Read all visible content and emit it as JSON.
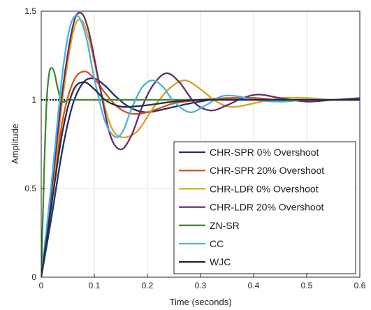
{
  "chart_data": {
    "type": "line",
    "title": "",
    "xlabel": "Time (seconds)",
    "ylabel": "Amplitude",
    "xlim": [
      0,
      0.6
    ],
    "ylim": [
      0,
      1.5
    ],
    "xticks": [
      0,
      0.1,
      0.2,
      0.3,
      0.4,
      0.5,
      0.6
    ],
    "xtick_labels": [
      "0",
      "0.1",
      "0.2",
      "0.3",
      "0.4",
      "0.5",
      "0.6"
    ],
    "yticks": [
      0,
      0.5,
      1,
      1.5
    ],
    "ytick_labels": [
      "0",
      "0.5",
      "1",
      "1.5"
    ],
    "grid": true,
    "legend_position": "bottom-right",
    "reference_line": {
      "y": 1,
      "style": "dotted",
      "x_range": [
        0,
        0.6
      ],
      "color": "#000000"
    },
    "series": [
      {
        "name": "CHR-SPR 0% Overshoot",
        "color": "#1f2f6b",
        "x": [
          0,
          0.02,
          0.04,
          0.06,
          0.08,
          0.1,
          0.12,
          0.14,
          0.16,
          0.18,
          0.2,
          0.22,
          0.25,
          0.28,
          0.32,
          0.36,
          0.4,
          0.45,
          0.5,
          0.55,
          0.6
        ],
        "y": [
          0,
          0.35,
          0.72,
          0.98,
          1.1,
          1.12,
          1.08,
          1.02,
          0.97,
          0.94,
          0.93,
          0.94,
          0.96,
          0.98,
          1.0,
          1.01,
          1.01,
          1.0,
          1.0,
          1.0,
          1.0
        ]
      },
      {
        "name": "CHR-SPR 20% Overshoot",
        "color": "#d9531e",
        "x": [
          0,
          0.02,
          0.04,
          0.06,
          0.08,
          0.1,
          0.12,
          0.14,
          0.16,
          0.18,
          0.2,
          0.22,
          0.25,
          0.3,
          0.35,
          0.4,
          0.45,
          0.5,
          0.55,
          0.6
        ],
        "y": [
          0,
          0.45,
          0.88,
          1.1,
          1.16,
          1.12,
          1.04,
          0.97,
          0.93,
          0.92,
          0.93,
          0.95,
          0.98,
          1.0,
          1.01,
          1.01,
          1.0,
          1.0,
          1.0,
          1.0
        ]
      },
      {
        "name": "CHR-LDR 0% Overshoot",
        "color": "#d9a31e",
        "x": [
          0,
          0.02,
          0.04,
          0.06,
          0.075,
          0.09,
          0.11,
          0.13,
          0.15,
          0.18,
          0.21,
          0.24,
          0.27,
          0.3,
          0.33,
          0.36,
          0.4,
          0.45,
          0.5,
          0.55,
          0.6
        ],
        "y": [
          0,
          0.45,
          1.0,
          1.38,
          1.45,
          1.34,
          1.08,
          0.86,
          0.79,
          0.82,
          0.95,
          1.06,
          1.11,
          1.06,
          0.99,
          0.96,
          0.98,
          1.01,
          1.01,
          1.0,
          1.0
        ]
      },
      {
        "name": "CHR-LDR 20% Overshoot",
        "color": "#6a2a6b",
        "x": [
          0,
          0.02,
          0.04,
          0.06,
          0.075,
          0.09,
          0.11,
          0.13,
          0.15,
          0.17,
          0.19,
          0.21,
          0.235,
          0.26,
          0.29,
          0.32,
          0.35,
          0.38,
          0.41,
          0.45,
          0.5,
          0.55,
          0.6
        ],
        "y": [
          0,
          0.5,
          1.05,
          1.42,
          1.49,
          1.38,
          1.08,
          0.8,
          0.72,
          0.8,
          0.96,
          1.08,
          1.15,
          1.1,
          0.98,
          0.94,
          0.97,
          1.01,
          1.03,
          1.01,
          0.99,
          1.0,
          1.01
        ]
      },
      {
        "name": "ZN-SR",
        "color": "#3d8b2f",
        "x": [
          0,
          0.005,
          0.01,
          0.015,
          0.02,
          0.025,
          0.03,
          0.035,
          0.04,
          0.045,
          0.05,
          0.06,
          0.08,
          0.1,
          0.15,
          0.2,
          0.3,
          0.4,
          0.5,
          0.6
        ],
        "y": [
          0,
          0.55,
          0.98,
          1.15,
          1.18,
          1.15,
          1.08,
          1.02,
          0.99,
          0.99,
          1.0,
          1.0,
          1.0,
          1.0,
          1.0,
          1.0,
          1.0,
          1.0,
          1.0,
          1.0
        ]
      },
      {
        "name": "CC",
        "color": "#4ab1de",
        "x": [
          0,
          0.02,
          0.04,
          0.055,
          0.07,
          0.085,
          0.1,
          0.12,
          0.14,
          0.155,
          0.17,
          0.19,
          0.21,
          0.23,
          0.25,
          0.28,
          0.31,
          0.34,
          0.37,
          0.4,
          0.45,
          0.5,
          0.55,
          0.6
        ],
        "y": [
          0,
          0.55,
          1.15,
          1.42,
          1.47,
          1.35,
          1.12,
          0.88,
          0.79,
          0.83,
          0.95,
          1.07,
          1.11,
          1.07,
          0.99,
          0.93,
          0.97,
          1.02,
          1.02,
          1.0,
          0.99,
          1.0,
          1.0,
          1.0
        ]
      },
      {
        "name": "WJC",
        "color": "#2a2a3f",
        "x": [
          0,
          0.02,
          0.04,
          0.06,
          0.08,
          0.1,
          0.12,
          0.14,
          0.16,
          0.2,
          0.25,
          0.3,
          0.35,
          0.4,
          0.5,
          0.6
        ],
        "y": [
          0,
          0.42,
          0.82,
          1.05,
          1.1,
          1.06,
          1.0,
          0.97,
          0.96,
          0.97,
          0.99,
          1.0,
          1.0,
          1.0,
          1.0,
          1.0
        ]
      }
    ]
  }
}
